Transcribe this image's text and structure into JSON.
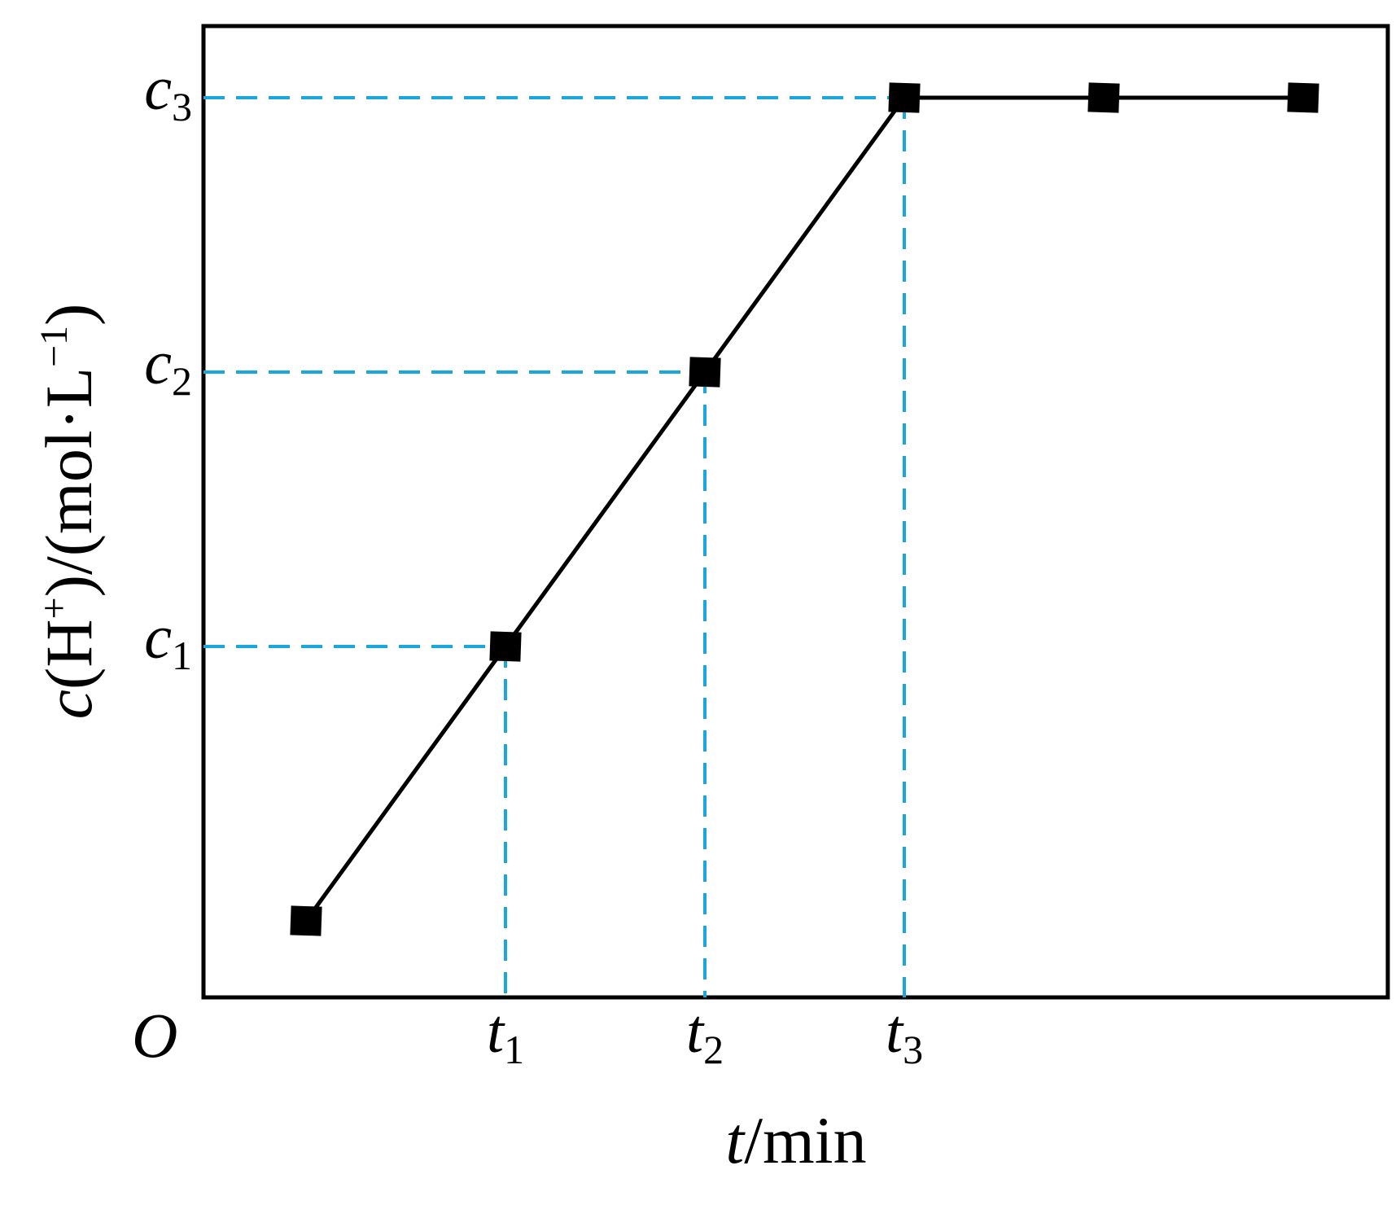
{
  "chart_data": {
    "type": "line",
    "xlabel": {
      "var": "t",
      "unit": "/min"
    },
    "ylabel": {
      "var": "c",
      "species": "(H",
      "charge": "+",
      "close": ")/(mol·L",
      "exp": "−1",
      "end": ")"
    },
    "origin_label": "O",
    "x_ticks": [
      {
        "base": "t",
        "sub": "1",
        "x": 1
      },
      {
        "base": "t",
        "sub": "2",
        "x": 2
      },
      {
        "base": "t",
        "sub": "3",
        "x": 3
      }
    ],
    "y_ticks": [
      {
        "base": "c",
        "sub": "1",
        "y": 1
      },
      {
        "base": "c",
        "sub": "2",
        "y": 2
      },
      {
        "base": "c",
        "sub": "3",
        "y": 3
      }
    ],
    "series": [
      {
        "marker": "square",
        "points": [
          {
            "x": 0.0,
            "y": 0.0
          },
          {
            "x": 1.0,
            "y": 1.0
          },
          {
            "x": 2.0,
            "y": 2.0
          },
          {
            "x": 3.0,
            "y": 3.0
          },
          {
            "x": 4.0,
            "y": 3.0
          },
          {
            "x": 5.0,
            "y": 3.0
          }
        ]
      }
    ],
    "guides": [
      {
        "x": 1,
        "y": 1
      },
      {
        "x": 2,
        "y": 2
      },
      {
        "x": 3,
        "y": 3
      }
    ],
    "colors": {
      "line": "#000000",
      "guide": "#1aa7dd",
      "frame": "#000000"
    },
    "grid": false
  }
}
